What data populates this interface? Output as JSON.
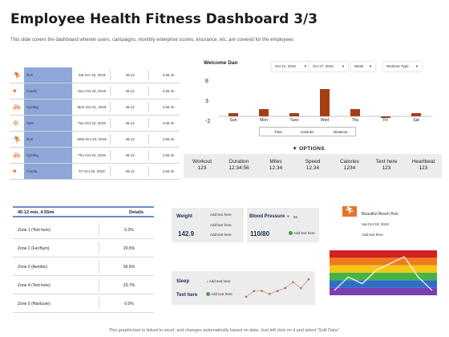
{
  "title": "Employee Health Fitness Dashboard 3/3",
  "subtitle": "This slide covers the dashboard wherein users, campaigns, monthly enterprise scores, insurance, etc. are covered for the employees",
  "activities": [
    {
      "icon": "running-icon",
      "name": "Run",
      "date": "Sat Oct 19, 2019",
      "time": "45:12",
      "distance": "4.55 mi"
    },
    {
      "icon": "heart-monitor-icon",
      "name": "Cardio",
      "date": "Sun Oct 20, 2019",
      "time": "45:12",
      "distance": "4.55 mi"
    },
    {
      "icon": "cycling-icon",
      "name": "Cycling",
      "date": "Mon Oct 21, 2019",
      "time": "45:12",
      "distance": "4.55 mi"
    },
    {
      "icon": "spin-bike-icon",
      "name": "Spin",
      "date": "Tue Oct 22, 2019",
      "time": "45:12",
      "distance": "4.55 mi"
    },
    {
      "icon": "running-icon",
      "name": "Run",
      "date": "Wed Oct 23, 2019",
      "time": "45:12",
      "distance": "4.55 mi"
    },
    {
      "icon": "cycling-icon",
      "name": "Cycling",
      "date": "Thu Oct 24, 2019",
      "time": "45:12",
      "distance": "4.55 mi"
    },
    {
      "icon": "heart-monitor-icon",
      "name": "Cardio",
      "date": "Fri Oct 25, 2019",
      "time": "45:12",
      "distance": "4.55 mi"
    }
  ],
  "welcome": "Welcome Dan",
  "filters": {
    "from": "Oct 21, 2019",
    "to": "Oct 27, 2019",
    "period": "Week",
    "type": "Workout Type"
  },
  "chart_data": {
    "type": "bar",
    "categories": [
      "Sun",
      "Mon",
      "Tues",
      "Wed",
      "Thu",
      "Fri",
      "Sat"
    ],
    "values": [
      0,
      1,
      0,
      6,
      1,
      -1,
      0
    ],
    "ylim": [
      -2,
      8
    ],
    "yticks": [
      "8",
      "3",
      "-2"
    ],
    "color": "#a63e12",
    "xlabel": "",
    "ylabel": ""
  },
  "chart_legend": [
    "Time",
    "Calories",
    "Distance"
  ],
  "options_label": "OPTIONS",
  "metrics": [
    {
      "label": "Workout",
      "value": "123"
    },
    {
      "label": "Duration",
      "value": "12:34:56"
    },
    {
      "label": "Miles",
      "value": "12.34"
    },
    {
      "label": "Speed",
      "value": "12.34"
    },
    {
      "label": "Calories",
      "value": "1234"
    },
    {
      "label": "Text here",
      "value": "123"
    },
    {
      "label": "Heartbeat",
      "value": "123"
    }
  ],
  "zones": {
    "header": "45:12 min, 4.55mi",
    "details_label": "Details",
    "rows": [
      {
        "label": "Zone 1 (Text here)",
        "value": "0.2%"
      },
      {
        "label": "Zone 2 (Fat Burn)",
        "value": "20.5%"
      },
      {
        "label": "Zone 3 (Aerobic)",
        "value": "56.6%"
      },
      {
        "label": "Zone 4 (Text here)",
        "value": "23.7%"
      },
      {
        "label": "Zone 5 (Hardcore)",
        "value": "0.0%"
      }
    ]
  },
  "weight_card": {
    "label": "Weight",
    "value": "142.9",
    "items": [
      "Add text here",
      "Add text here",
      "Add text here"
    ]
  },
  "bp_card": {
    "label": "Blood Pressure",
    "value": "110/80",
    "count": "55",
    "item": "Add text here"
  },
  "beach_card": {
    "title": "Beautiful Beach Run",
    "date": "Sat Oct 19, 2019",
    "note": "Add text here"
  },
  "sleep_card": {
    "sleep_label": "Sleep",
    "text_label": "Text here",
    "item1": "Add text here",
    "item2": "Add text here"
  },
  "sleep_series": [
    2,
    4,
    4,
    3,
    4,
    5,
    7,
    5,
    8
  ],
  "rainbow_series": [
    1,
    3,
    2,
    4,
    5,
    6,
    3,
    1
  ],
  "rainbow_colors": [
    "#d42020",
    "#f07a1c",
    "#f2c716",
    "#44b34a",
    "#2e6fc8",
    "#7a3fb0"
  ],
  "footer": "This graph/chart is linked to excel, and changes automatically  based on data. Just left click on it and select \"Edit Data\"."
}
